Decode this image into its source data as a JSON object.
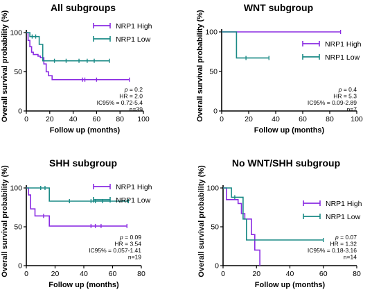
{
  "colors": {
    "high": "#8a2be2",
    "low": "#1a8a86",
    "axis": "#000000"
  },
  "chart_data": [
    {
      "type": "line",
      "title": "All subgroups",
      "xlabel": "Follow up (months)",
      "ylabel": "Overall survival probability (%)",
      "xlim": [
        0,
        100
      ],
      "ylim": [
        0,
        100
      ],
      "xticks": [
        "0",
        "20",
        "40",
        "60",
        "80",
        "100"
      ],
      "yticks": [
        "0",
        "50",
        "100"
      ],
      "legend_position": "top-right",
      "series": [
        {
          "name": "NRP1 High",
          "x": [
            0,
            1.5,
            1.5,
            3,
            3,
            4.5,
            4.5,
            6,
            6,
            10,
            10,
            12,
            12,
            15,
            15,
            17,
            17,
            19,
            19,
            22,
            22,
            88
          ],
          "y": [
            100,
            100,
            90,
            90,
            82,
            82,
            75,
            75,
            72,
            72,
            70,
            70,
            68,
            68,
            60,
            60,
            50,
            50,
            45,
            45,
            40,
            40
          ],
          "censor_x": [
            48,
            50,
            60,
            88
          ],
          "censor_y": [
            40,
            40,
            40,
            40
          ]
        },
        {
          "name": "NRP1 Low",
          "x": [
            0,
            3,
            3,
            11,
            11,
            14,
            14,
            71
          ],
          "y": [
            100,
            100,
            95,
            95,
            85,
            85,
            64,
            64
          ],
          "censor_x": [
            5,
            8,
            24,
            34,
            45,
            52,
            58,
            71
          ],
          "censor_y": [
            95,
            95,
            64,
            64,
            64,
            64,
            64,
            64
          ]
        }
      ],
      "annotations": [
        "p = 0.2",
        "HR = 2.0",
        "IC95% = 0.72-5.4",
        "n=39"
      ]
    },
    {
      "type": "line",
      "title": "WNT subgroup",
      "xlabel": "Follow up (months)",
      "ylabel": "Overall survival probability (%)",
      "xlim": [
        0,
        100
      ],
      "ylim": [
        0,
        100
      ],
      "xticks": [
        "0",
        "20",
        "40",
        "60",
        "80",
        "100"
      ],
      "yticks": [
        "0",
        "50",
        "100"
      ],
      "legend_position": "right",
      "series": [
        {
          "name": "NRP1 High",
          "x": [
            0,
            88
          ],
          "y": [
            100,
            100
          ],
          "censor_x": [
            88
          ],
          "censor_y": [
            100
          ]
        },
        {
          "name": "NRP1 Low",
          "x": [
            0,
            11,
            11,
            35
          ],
          "y": [
            100,
            100,
            67,
            67
          ],
          "censor_x": [
            18,
            35
          ],
          "censor_y": [
            67,
            67
          ]
        }
      ],
      "annotations": [
        "p = 0.4",
        "HR = 5.3",
        "IC95% = 0.09-2.89",
        "n=7"
      ]
    },
    {
      "type": "line",
      "title": "SHH subgroup",
      "xlabel": "Follow up (months)",
      "ylabel": "Overall survival probability (%)",
      "xlim": [
        0,
        80
      ],
      "ylim": [
        0,
        100
      ],
      "xticks": [
        "0",
        "20",
        "40",
        "60",
        "80"
      ],
      "yticks": [
        "0",
        "50",
        "100"
      ],
      "legend_position": "top-right",
      "series": [
        {
          "name": "NRP1 High",
          "x": [
            0,
            1.5,
            1.5,
            3,
            3,
            6,
            6,
            16,
            16,
            70
          ],
          "y": [
            100,
            100,
            91,
            91,
            73,
            73,
            64,
            64,
            51,
            51
          ],
          "censor_x": [
            12,
            45,
            48,
            52,
            70
          ],
          "censor_y": [
            64,
            51,
            51,
            51,
            51
          ]
        },
        {
          "name": "NRP1 Low",
          "x": [
            0,
            16,
            16,
            71
          ],
          "y": [
            100,
            100,
            83,
            83
          ],
          "censor_x": [
            10,
            13,
            30,
            45,
            48,
            53,
            71
          ],
          "censor_y": [
            100,
            100,
            83,
            83,
            83,
            83,
            83
          ]
        }
      ],
      "annotations": [
        "p = 0.09",
        "HR = 3.54",
        "IC95% = 0.057-1.41",
        "n=19"
      ]
    },
    {
      "type": "line",
      "title": "No WNT/SHH subgroup",
      "xlabel": "Follow up (months)",
      "ylabel": "Overall survival probability (%)",
      "xlim": [
        0,
        80
      ],
      "ylim": [
        0,
        100
      ],
      "xticks": [
        "0",
        "20",
        "40",
        "60",
        "80"
      ],
      "yticks": [
        "0",
        "50",
        "100"
      ],
      "legend_position": "right",
      "series": [
        {
          "name": "NRP1 High",
          "x": [
            0,
            2,
            2,
            9,
            9,
            11,
            11,
            13,
            13,
            17,
            17,
            19,
            19,
            22,
            22
          ],
          "y": [
            100,
            100,
            85,
            85,
            80,
            80,
            67,
            67,
            60,
            60,
            40,
            40,
            20,
            20,
            0
          ],
          "censor_x": [],
          "censor_y": []
        },
        {
          "name": "NRP1 Low",
          "x": [
            0,
            5,
            5,
            12,
            12,
            14,
            14,
            60
          ],
          "y": [
            100,
            100,
            88,
            88,
            60,
            60,
            33,
            33
          ],
          "censor_x": [
            7,
            60
          ],
          "censor_y": [
            88,
            33
          ]
        }
      ],
      "annotations": [
        "p = 0.07",
        "HR = 1.32",
        "IC95% = 0.18-3.16",
        "n=14"
      ]
    }
  ]
}
